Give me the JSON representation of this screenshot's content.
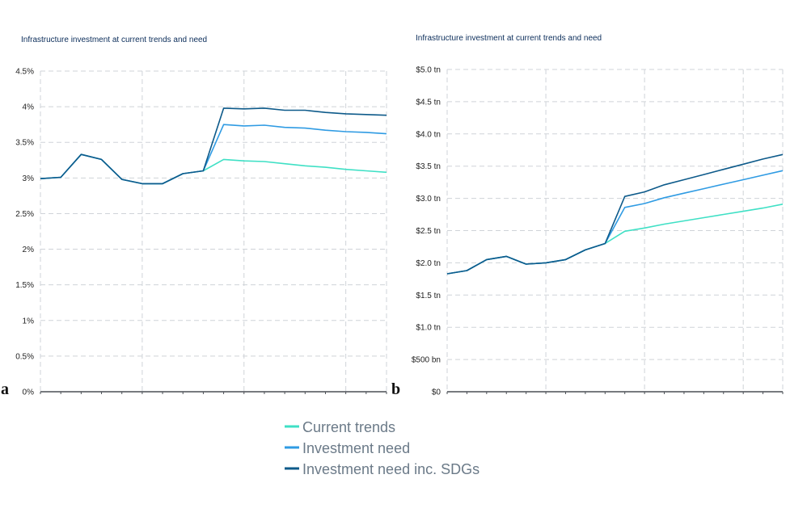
{
  "panel_labels": [
    "a",
    "b"
  ],
  "legend": [
    {
      "name": "Current trends",
      "color": "#3fe0c5"
    },
    {
      "name": "Investment need",
      "color": "#2f9be3"
    },
    {
      "name": "Investment need inc. SDGs",
      "color": "#0d5a8a"
    }
  ],
  "chart_data": [
    {
      "type": "line",
      "title": "Infrastructure investment at current trends and need",
      "x": [
        0,
        1,
        2,
        3,
        4,
        5,
        6,
        7,
        8,
        9,
        10,
        11,
        12,
        13,
        14,
        15,
        16,
        17
      ],
      "ylim": [
        0,
        4.5
      ],
      "yticks": [
        0,
        0.5,
        1,
        1.5,
        2,
        2.5,
        3,
        3.5,
        4,
        4.5
      ],
      "ytick_labels": [
        "0%",
        "0.5%",
        "1%",
        "1.5%",
        "2%",
        "2.5%",
        "3%",
        "3.5%",
        "4%",
        "4.5%"
      ],
      "grid": true,
      "series": [
        {
          "name": "Current trends",
          "color": "#3fe0c5",
          "values": [
            2.99,
            3.01,
            3.33,
            3.26,
            2.98,
            2.92,
            2.92,
            3.06,
            3.1,
            3.26,
            3.24,
            3.23,
            3.2,
            3.17,
            3.15,
            3.12,
            3.1,
            3.08
          ]
        },
        {
          "name": "Investment need",
          "color": "#2f9be3",
          "values": [
            2.99,
            3.01,
            3.33,
            3.26,
            2.98,
            2.92,
            2.92,
            3.06,
            3.1,
            3.75,
            3.73,
            3.74,
            3.71,
            3.7,
            3.67,
            3.65,
            3.64,
            3.62
          ]
        },
        {
          "name": "Investment need inc. SDGs",
          "color": "#0d5a8a",
          "values": [
            2.99,
            3.01,
            3.33,
            3.26,
            2.98,
            2.92,
            2.92,
            3.06,
            3.1,
            3.98,
            3.97,
            3.98,
            3.95,
            3.95,
            3.92,
            3.9,
            3.89,
            3.88
          ]
        }
      ]
    },
    {
      "type": "line",
      "title": "Infrastructure investment at current trends and need",
      "x": [
        0,
        1,
        2,
        3,
        4,
        5,
        6,
        7,
        8,
        9,
        10,
        11,
        12,
        13,
        14,
        15,
        16,
        17
      ],
      "ylim": [
        0,
        5.0
      ],
      "yticks": [
        0,
        0.5,
        1.0,
        1.5,
        2.0,
        2.5,
        3.0,
        3.5,
        4.0,
        4.5,
        5.0
      ],
      "ytick_labels": [
        "$0",
        "$500 bn",
        "$1.0 tn",
        "$1.5 tn",
        "$2.0 tn",
        "$2.5 tn",
        "$3.0 tn",
        "$3.5 tn",
        "$4.0 tn",
        "$4.5 tn",
        "$5.0 tn"
      ],
      "grid": true,
      "series": [
        {
          "name": "Current trends",
          "color": "#3fe0c5",
          "values": [
            1.83,
            1.88,
            2.05,
            2.1,
            1.98,
            2.0,
            2.05,
            2.2,
            2.3,
            2.49,
            2.54,
            2.6,
            2.65,
            2.7,
            2.75,
            2.8,
            2.85,
            2.91
          ]
        },
        {
          "name": "Investment need",
          "color": "#2f9be3",
          "values": [
            1.83,
            1.88,
            2.05,
            2.1,
            1.98,
            2.0,
            2.05,
            2.2,
            2.3,
            2.86,
            2.92,
            3.01,
            3.08,
            3.15,
            3.22,
            3.29,
            3.36,
            3.43
          ]
        },
        {
          "name": "Investment need inc. SDGs",
          "color": "#0d5a8a",
          "values": [
            1.83,
            1.88,
            2.05,
            2.1,
            1.98,
            2.0,
            2.05,
            2.2,
            2.3,
            3.03,
            3.1,
            3.21,
            3.29,
            3.37,
            3.45,
            3.53,
            3.61,
            3.68
          ]
        }
      ]
    }
  ]
}
